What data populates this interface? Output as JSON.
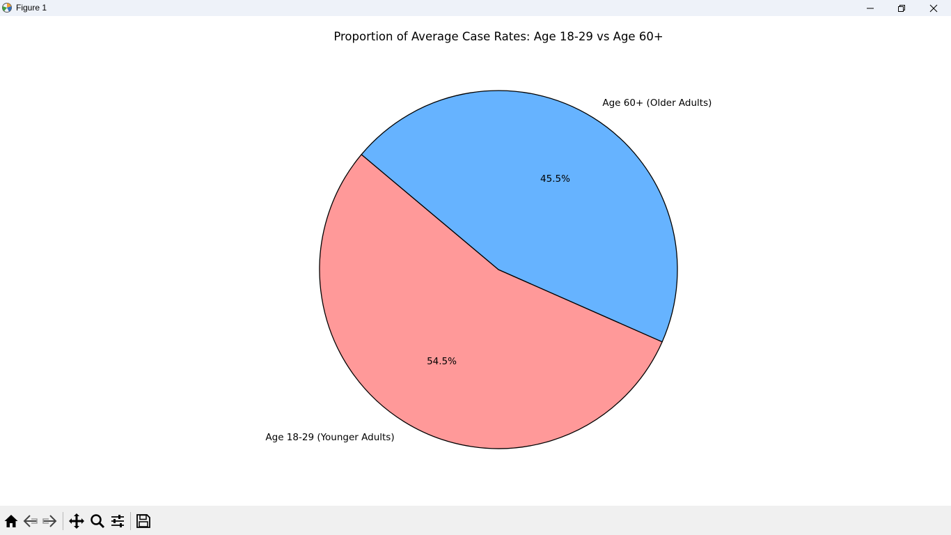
{
  "window": {
    "title": "Figure 1",
    "icons": [
      "matplotlib-icon",
      "minimize-icon",
      "maximize-icon",
      "close-icon"
    ]
  },
  "toolbar": {
    "tools": [
      "home-icon",
      "back-icon",
      "forward-icon",
      "pan-icon",
      "zoom-icon",
      "configure-subplots-icon",
      "save-icon"
    ]
  },
  "chart_data": {
    "type": "pie",
    "title": "Proportion of Average Case Rates: Age 18-29 vs Age 60+",
    "slices": [
      {
        "label": "Age 18-29 (Younger Adults)",
        "value": 54.5,
        "pct_label": "54.5%",
        "color": "#ff9999"
      },
      {
        "label": "Age 60+ (Older Adults)",
        "value": 45.5,
        "pct_label": "45.5%",
        "color": "#66b3ff"
      }
    ],
    "start_angle_deg": 140,
    "edge_color": "#000000"
  }
}
